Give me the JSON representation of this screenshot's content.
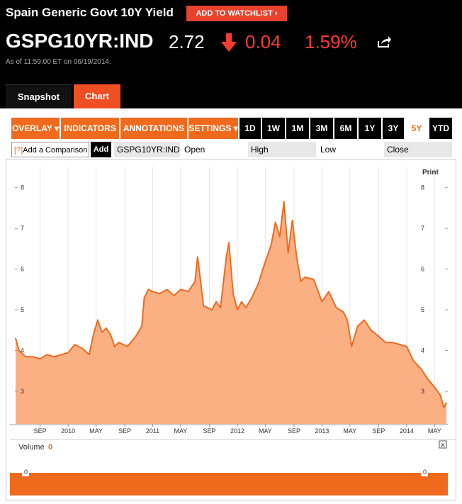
{
  "header": {
    "title": "Spain Generic Govt 10Y Yield",
    "watchlist_label": "ADD TO WATCHLIST",
    "ticker": "GSPG10YR:IND",
    "price": "2.72",
    "change": "0.04",
    "change_pct": "1.59%",
    "change_direction": "down",
    "as_of": "As of 11:59:00 ET on 06/19/2014.",
    "down_color": "#ff3b30"
  },
  "tabs": [
    "Snapshot",
    "Chart"
  ],
  "toolbar": {
    "menus": [
      "OVERLAY ▾",
      "INDICATORS ▾",
      "ANNOTATIONS ▾",
      "SETTINGS ▾"
    ],
    "ranges": [
      "1D",
      "1W",
      "1M",
      "3M",
      "6M",
      "1Y",
      "3Y",
      "5Y",
      "YTD"
    ],
    "active_range": "5Y",
    "accent": "#f06a1e"
  },
  "comparison": {
    "help": "[?]",
    "placeholder": "Add a Comparison",
    "add_label": "Add",
    "symbol": "GSPG10YR:IND",
    "fields": [
      "Open",
      "High",
      "Low",
      "Close"
    ]
  },
  "print_label": "Print",
  "volume": {
    "label": "Volume",
    "value": "0",
    "tick": "0",
    "close": "✕"
  },
  "chart_data": {
    "type": "area",
    "ylim": [
      2.2,
      8.5
    ],
    "yticks": [
      3,
      4,
      5,
      6,
      7,
      8
    ],
    "x_labels": [
      "SEP",
      "2010",
      "MAY",
      "SEP",
      "2011",
      "MAY",
      "SEP",
      "2012",
      "MAY",
      "SEP",
      "2013",
      "MAY",
      "SEP",
      "2014",
      "MAY"
    ],
    "x_label_positions": [
      2009.67,
      2010.0,
      2010.33,
      2010.67,
      2011.0,
      2011.33,
      2011.67,
      2012.0,
      2012.33,
      2012.67,
      2013.0,
      2013.33,
      2013.67,
      2014.0,
      2014.33
    ],
    "x_range": [
      2009.38,
      2014.47
    ],
    "x": [
      2009.38,
      2009.42,
      2009.5,
      2009.58,
      2009.67,
      2009.75,
      2009.83,
      2009.92,
      2010.0,
      2010.08,
      2010.17,
      2010.25,
      2010.3,
      2010.35,
      2010.4,
      2010.45,
      2010.5,
      2010.55,
      2010.6,
      2010.7,
      2010.8,
      2010.87,
      2010.9,
      2010.95,
      2011.0,
      2011.08,
      2011.17,
      2011.25,
      2011.33,
      2011.42,
      2011.5,
      2011.53,
      2011.56,
      2011.6,
      2011.65,
      2011.7,
      2011.75,
      2011.8,
      2011.87,
      2011.9,
      2011.95,
      2012.0,
      2012.05,
      2012.1,
      2012.17,
      2012.25,
      2012.3,
      2012.35,
      2012.4,
      2012.45,
      2012.5,
      2012.55,
      2012.6,
      2012.65,
      2012.7,
      2012.75,
      2012.8,
      2012.9,
      2013.0,
      2013.08,
      2013.17,
      2013.25,
      2013.3,
      2013.35,
      2013.42,
      2013.5,
      2013.58,
      2013.67,
      2013.75,
      2013.83,
      2013.92,
      2014.0,
      2014.08,
      2014.17,
      2014.25,
      2014.33,
      2014.4,
      2014.44,
      2014.47
    ],
    "values": [
      4.3,
      4.0,
      3.85,
      3.85,
      3.8,
      3.9,
      3.85,
      3.9,
      3.95,
      4.15,
      4.05,
      3.9,
      4.4,
      4.75,
      4.45,
      4.55,
      4.4,
      4.1,
      4.2,
      4.1,
      4.35,
      4.6,
      5.3,
      5.5,
      5.45,
      5.4,
      5.5,
      5.35,
      5.5,
      5.45,
      5.7,
      6.3,
      5.8,
      5.1,
      5.05,
      5.0,
      5.2,
      5.05,
      6.3,
      6.65,
      5.4,
      5.0,
      5.2,
      5.05,
      5.3,
      5.65,
      6.0,
      6.3,
      6.6,
      7.15,
      6.8,
      7.65,
      6.4,
      7.2,
      6.3,
      5.7,
      5.8,
      5.75,
      5.2,
      5.45,
      5.05,
      4.95,
      4.75,
      4.1,
      4.6,
      4.75,
      4.5,
      4.35,
      4.2,
      4.2,
      4.15,
      4.1,
      3.75,
      3.55,
      3.3,
      3.1,
      2.9,
      2.6,
      2.72
    ],
    "line_color": "#f06a1e",
    "fill_color": "#fbb084"
  }
}
